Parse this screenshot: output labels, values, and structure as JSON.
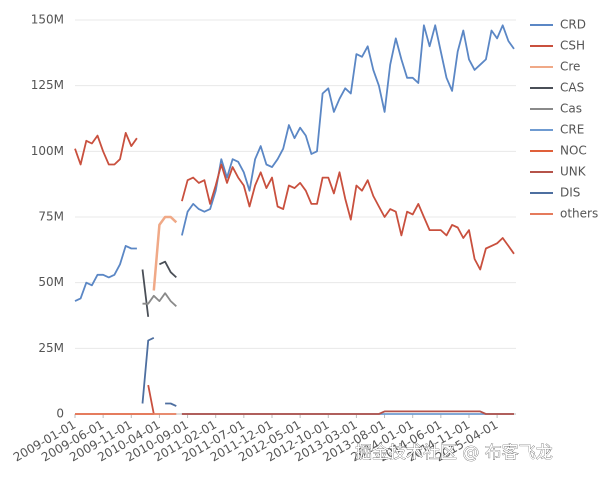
{
  "chart_data": {
    "type": "line",
    "x": [
      "2009-01-01",
      "2009-02-01",
      "2009-03-01",
      "2009-04-01",
      "2009-05-01",
      "2009-06-01",
      "2009-07-01",
      "2009-08-01",
      "2009-09-01",
      "2009-10-01",
      "2009-11-01",
      "2009-12-01",
      "2010-01-01",
      "2010-02-01",
      "2010-03-01",
      "2010-04-01",
      "2010-05-01",
      "2010-06-01",
      "2010-07-01",
      "2010-08-01",
      "2010-09-01",
      "2010-10-01",
      "2010-11-01",
      "2010-12-01",
      "2011-01-01",
      "2011-02-01",
      "2011-03-01",
      "2011-04-01",
      "2011-05-01",
      "2011-06-01",
      "2011-07-01",
      "2011-08-01",
      "2011-09-01",
      "2011-10-01",
      "2011-11-01",
      "2011-12-01",
      "2012-01-01",
      "2012-02-01",
      "2012-03-01",
      "2012-04-01",
      "2012-05-01",
      "2012-06-01",
      "2012-07-01",
      "2012-08-01",
      "2012-09-01",
      "2012-10-01",
      "2012-11-01",
      "2012-12-01",
      "2013-01-01",
      "2013-02-01",
      "2013-03-01",
      "2013-04-01",
      "2013-05-01",
      "2013-06-01",
      "2013-07-01",
      "2013-08-01",
      "2013-09-01",
      "2013-10-01",
      "2013-11-01",
      "2013-12-01",
      "2014-01-01",
      "2014-02-01",
      "2014-03-01",
      "2014-04-01",
      "2014-05-01",
      "2014-06-01",
      "2014-07-01",
      "2014-08-01",
      "2014-09-01",
      "2014-10-01",
      "2014-11-01",
      "2014-12-01",
      "2015-01-01",
      "2015-02-01",
      "2015-03-01",
      "2015-04-01",
      "2015-05-01",
      "2015-06-01",
      "2015-07-01"
    ],
    "series": [
      {
        "name": "CRD",
        "color": "#5b87c5",
        "values": [
          43,
          44,
          50,
          49,
          53,
          53,
          52,
          53,
          57,
          64,
          63,
          63,
          null,
          null,
          null,
          null,
          null,
          null,
          null,
          68,
          77,
          80,
          78,
          77,
          78,
          85,
          97,
          90,
          97,
          96,
          92,
          85,
          97,
          102,
          95,
          94,
          97,
          101,
          110,
          105,
          109,
          106,
          99,
          100,
          122,
          124,
          115,
          120,
          124,
          122,
          137,
          136,
          140,
          131,
          125,
          115,
          133,
          143,
          135,
          128,
          128,
          126,
          148,
          140,
          148,
          138,
          128,
          123,
          138,
          146,
          135,
          131,
          133,
          135,
          146,
          143,
          148,
          142,
          139
        ]
      },
      {
        "name": "CSH",
        "color": "#c9503e",
        "values": [
          101,
          95,
          104,
          103,
          106,
          100,
          95,
          95,
          97,
          107,
          102,
          105,
          null,
          11,
          0,
          null,
          null,
          null,
          null,
          81,
          89,
          90,
          88,
          89,
          80,
          87,
          95,
          88,
          94,
          90,
          87,
          79,
          87,
          92,
          86,
          90,
          79,
          78,
          87,
          86,
          88,
          85,
          80,
          80,
          90,
          90,
          84,
          92,
          82,
          74,
          87,
          85,
          89,
          83,
          79,
          75,
          78,
          77,
          68,
          77,
          76,
          80,
          75,
          70,
          70,
          70,
          68,
          72,
          71,
          67,
          70,
          59,
          55,
          63,
          64,
          65,
          67,
          64,
          61
        ]
      },
      {
        "name": "Cre",
        "color": "#f0a987",
        "values": [
          null,
          null,
          null,
          null,
          null,
          null,
          null,
          null,
          null,
          null,
          null,
          null,
          null,
          null,
          47,
          72,
          75,
          75,
          73,
          null,
          null,
          null,
          null,
          null,
          null,
          null,
          null,
          null,
          null,
          null,
          null,
          null,
          null,
          null,
          null,
          null,
          null,
          null,
          null,
          null,
          null,
          null,
          null,
          null,
          null,
          null,
          null,
          null,
          null,
          null,
          null,
          null,
          null,
          null,
          null,
          null,
          null,
          null,
          null,
          null,
          null,
          null,
          null,
          null,
          null,
          null,
          null,
          null,
          null,
          null,
          null,
          null,
          null,
          null,
          null,
          null,
          null,
          null,
          null
        ]
      },
      {
        "name": "CAS",
        "color": "#4a4f57",
        "values": [
          null,
          null,
          null,
          null,
          null,
          null,
          null,
          null,
          null,
          null,
          null,
          null,
          55,
          37,
          null,
          57,
          58,
          54,
          52,
          null,
          null,
          null,
          null,
          null,
          null,
          null,
          null,
          null,
          null,
          null,
          null,
          null,
          null,
          null,
          null,
          null,
          null,
          null,
          null,
          null,
          null,
          null,
          null,
          null,
          null,
          null,
          null,
          null,
          null,
          null,
          null,
          null,
          null,
          null,
          null,
          null,
          null,
          null,
          null,
          null,
          null,
          null,
          null,
          null,
          null,
          null,
          null,
          null,
          null,
          null,
          null,
          null,
          null,
          null,
          null,
          null,
          null,
          null,
          null
        ]
      },
      {
        "name": "Cas",
        "color": "#8a8a8a",
        "values": [
          null,
          null,
          null,
          null,
          null,
          null,
          null,
          null,
          null,
          null,
          null,
          null,
          42,
          42,
          45,
          43,
          46,
          43,
          41,
          null,
          null,
          null,
          null,
          null,
          null,
          null,
          null,
          null,
          null,
          null,
          null,
          null,
          null,
          null,
          null,
          null,
          null,
          null,
          null,
          null,
          null,
          null,
          null,
          null,
          null,
          null,
          null,
          null,
          null,
          null,
          null,
          null,
          null,
          null,
          null,
          null,
          null,
          null,
          null,
          null,
          null,
          null,
          null,
          null,
          null,
          null,
          null,
          null,
          null,
          null,
          null,
          null,
          null,
          null,
          null,
          null,
          null,
          null,
          null
        ]
      },
      {
        "name": "CRE",
        "color": "#6f9bd1",
        "values": [
          null,
          null,
          null,
          null,
          null,
          null,
          null,
          null,
          null,
          null,
          null,
          null,
          null,
          null,
          null,
          null,
          null,
          null,
          null,
          0,
          0,
          0,
          0,
          0,
          0,
          0,
          0,
          0,
          0,
          0,
          0,
          0,
          0,
          0,
          0,
          0,
          0,
          0,
          0,
          0,
          0,
          0,
          0,
          0,
          0,
          0,
          0,
          0,
          0,
          0,
          0,
          0,
          0,
          0,
          0,
          0,
          0,
          0,
          0,
          0,
          0,
          0,
          0,
          0,
          0,
          0,
          0,
          0,
          0,
          0,
          0,
          0,
          0,
          0,
          0,
          0,
          0,
          0,
          0
        ]
      },
      {
        "name": "NOC",
        "color": "#e0603a",
        "values": [
          0,
          0,
          0,
          0,
          0,
          0,
          0,
          0,
          0,
          0,
          0,
          0,
          0,
          0,
          0,
          null,
          null,
          null,
          null,
          null,
          null,
          null,
          null,
          null,
          null,
          null,
          null,
          null,
          null,
          null,
          null,
          null,
          null,
          null,
          null,
          null,
          null,
          null,
          null,
          null,
          null,
          null,
          null,
          null,
          null,
          null,
          null,
          null,
          null,
          null,
          null,
          null,
          null,
          null,
          null,
          null,
          null,
          null,
          null,
          null,
          null,
          null,
          null,
          null,
          null,
          null,
          null,
          null,
          null,
          null,
          null,
          null,
          null,
          null,
          null,
          null,
          null,
          null,
          null
        ]
      },
      {
        "name": "UNK",
        "color": "#b5534a",
        "values": [
          null,
          null,
          null,
          null,
          null,
          null,
          null,
          null,
          null,
          null,
          null,
          null,
          null,
          null,
          null,
          null,
          null,
          null,
          null,
          0,
          0,
          0,
          0,
          0,
          0,
          0,
          0,
          0,
          0,
          0,
          0,
          0,
          0,
          0,
          0,
          0,
          0,
          0,
          0,
          0,
          0,
          0,
          0,
          0,
          0,
          0,
          0,
          0,
          0,
          0,
          0,
          0,
          0,
          0,
          0,
          1,
          1,
          1,
          1,
          1,
          1,
          1,
          1,
          1,
          1,
          1,
          1,
          1,
          1,
          1,
          1,
          1,
          1,
          0,
          0,
          0,
          0,
          0,
          0
        ]
      },
      {
        "name": "DIS",
        "color": "#4e6fa0",
        "values": [
          null,
          null,
          null,
          null,
          null,
          null,
          null,
          null,
          null,
          null,
          null,
          null,
          4,
          28,
          29,
          null,
          4,
          4,
          3,
          null,
          null,
          null,
          null,
          null,
          null,
          null,
          null,
          null,
          null,
          null,
          null,
          null,
          null,
          null,
          null,
          null,
          null,
          null,
          null,
          null,
          null,
          null,
          null,
          null,
          null,
          null,
          null,
          null,
          null,
          null,
          null,
          null,
          null,
          null,
          null,
          null,
          null,
          null,
          null,
          null,
          null,
          null,
          null,
          null,
          null,
          null,
          null,
          null,
          null,
          null,
          null,
          null,
          null,
          null,
          null,
          null,
          null,
          null,
          null
        ]
      },
      {
        "name": "others",
        "color": "#e57b5c",
        "values": [
          0,
          0,
          0,
          0,
          0,
          0,
          0,
          0,
          0,
          0,
          0,
          0,
          0,
          0,
          0,
          0,
          0,
          0,
          0,
          null,
          null,
          null,
          null,
          null,
          null,
          null,
          null,
          null,
          null,
          null,
          null,
          null,
          null,
          null,
          null,
          null,
          null,
          null,
          null,
          null,
          null,
          null,
          null,
          null,
          null,
          null,
          null,
          null,
          null,
          null,
          null,
          null,
          null,
          null,
          null,
          null,
          null,
          null,
          null,
          null,
          null,
          null,
          null,
          null,
          null,
          null,
          null,
          null,
          null,
          null,
          null,
          null,
          null,
          null,
          null,
          null,
          null,
          null,
          null
        ]
      }
    ],
    "xlim": [
      "2009-01-01",
      "2015-07-01"
    ],
    "xticks": [
      "2009-01-01",
      "2009-06-01",
      "2009-11-01",
      "2010-04-01",
      "2010-09-01",
      "2011-02-01",
      "2011-07-01",
      "2011-12-01",
      "2012-05-01",
      "2012-10-01",
      "2013-03-01",
      "2013-08-01",
      "2014-01-01",
      "2014-06-01",
      "2014-11-01",
      "2015-04-01"
    ],
    "ylim": [
      0,
      150
    ],
    "yticks": [
      0,
      {
        "value": 25,
        "label": "25M"
      },
      {
        "value": 50,
        "label": "50M"
      },
      {
        "value": 75,
        "label": "75M"
      },
      {
        "value": 100,
        "label": "100M"
      },
      {
        "value": 125,
        "label": "125M"
      },
      {
        "value": 150,
        "label": "150M"
      }
    ],
    "grid": true,
    "legend": "right",
    "watermark": "掘金技术社区 @ 布客飞龙"
  }
}
